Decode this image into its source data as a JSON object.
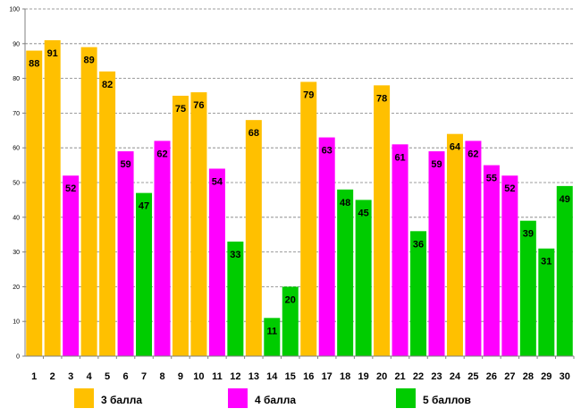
{
  "chart_data": {
    "type": "bar",
    "title": "",
    "xlabel": "",
    "ylabel": "",
    "ylim": [
      0,
      100
    ],
    "yticks": [
      0,
      10,
      20,
      30,
      40,
      50,
      60,
      70,
      80,
      90,
      100
    ],
    "grid": true,
    "categories": [
      "1",
      "2",
      "3",
      "4",
      "5",
      "6",
      "7",
      "8",
      "9",
      "10",
      "11",
      "12",
      "13",
      "14",
      "15",
      "16",
      "17",
      "18",
      "19",
      "20",
      "21",
      "22",
      "23",
      "24",
      "25",
      "26",
      "27",
      "28",
      "29",
      "30"
    ],
    "values": [
      88,
      91,
      52,
      89,
      82,
      59,
      47,
      62,
      75,
      76,
      54,
      33,
      68,
      11,
      20,
      79,
      63,
      48,
      45,
      78,
      61,
      36,
      59,
      64,
      62,
      55,
      52,
      39,
      31,
      49
    ],
    "groups": [
      "g3",
      "g3",
      "g4",
      "g3",
      "g3",
      "g4",
      "g5",
      "g4",
      "g3",
      "g3",
      "g4",
      "g5",
      "g3",
      "g5",
      "g5",
      "g3",
      "g4",
      "g5",
      "g5",
      "g3",
      "g4",
      "g5",
      "g4",
      "g3",
      "g4",
      "g4",
      "g4",
      "g5",
      "g5",
      "g5"
    ],
    "series": [
      {
        "id": "g3",
        "name": "3 балла",
        "color": "#FFC000"
      },
      {
        "id": "g4",
        "name": "4 балла",
        "color": "#FF00FF"
      },
      {
        "id": "g5",
        "name": "5 баллов",
        "color": "#00CC00"
      }
    ],
    "legend_position": "bottom"
  }
}
